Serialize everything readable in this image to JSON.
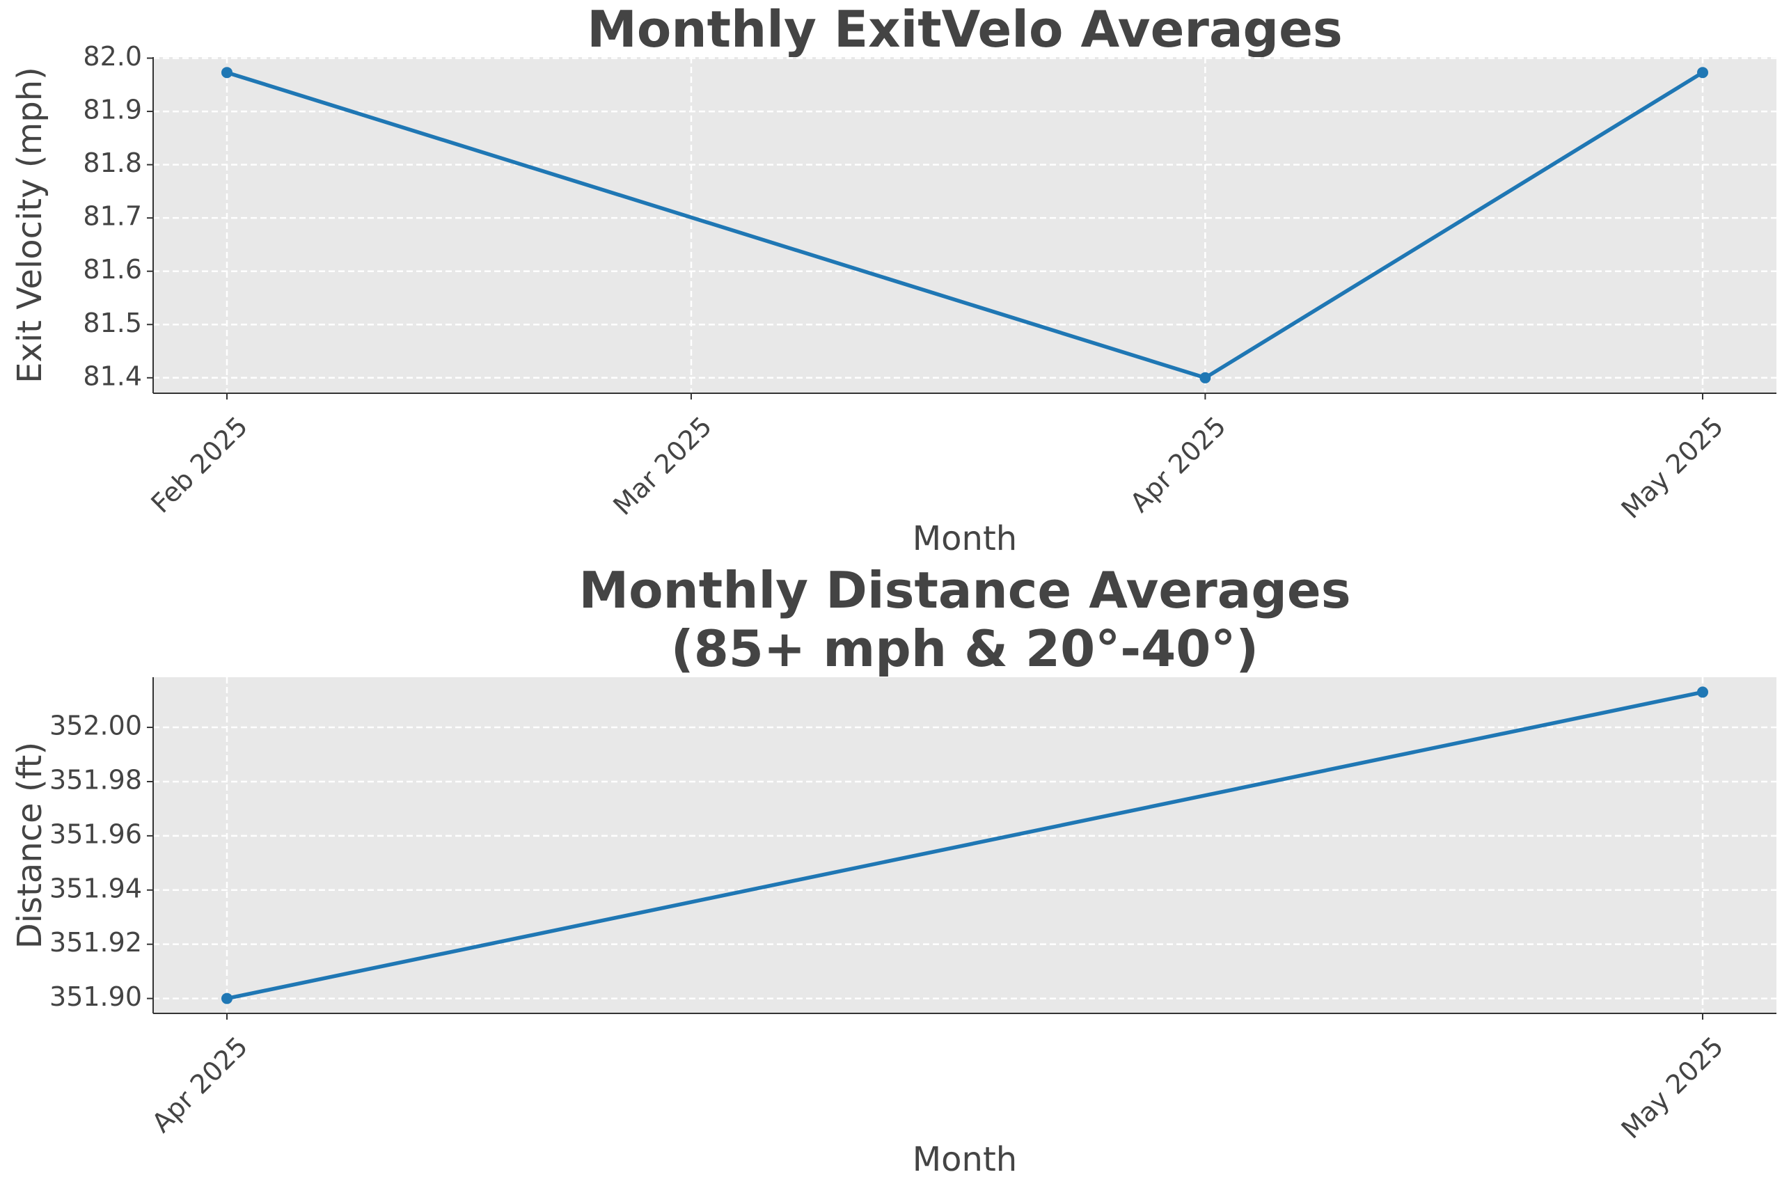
{
  "chart_data": [
    {
      "type": "line",
      "title": "Monthly ExitVelo Averages",
      "xlabel": "Month",
      "ylabel": "Exit Velocity (mph)",
      "x": [
        "2025-02",
        "2025-04",
        "2025-05"
      ],
      "series": [
        {
          "color": "#1f77b4",
          "values": [
            81.973,
            81.4,
            81.973
          ]
        }
      ],
      "xlim": [
        "2025-01-27T13:12",
        "2025-05-05T10:48"
      ],
      "xticks": [
        {
          "value": "2025-02",
          "label": "Feb 2025"
        },
        {
          "value": "2025-03",
          "label": "Mar 2025"
        },
        {
          "value": "2025-04",
          "label": "Apr 2025"
        },
        {
          "value": "2025-05",
          "label": "May 2025"
        }
      ],
      "ylim": [
        81.371,
        82.002
      ],
      "yticks": [
        81.4,
        81.5,
        81.6,
        81.7,
        81.8,
        81.9,
        {
          "value": 82,
          "label": "82.0"
        }
      ],
      "grid": true
    },
    {
      "type": "line",
      "title": "Monthly Distance Averages\n(85+ mph & 20°-40°)",
      "xlabel": "Month",
      "ylabel": "Distance (ft)",
      "x": [
        "2025-04",
        "2025-05"
      ],
      "series": [
        {
          "color": "#1f77b4",
          "values": [
            351.9,
            352.013
          ]
        }
      ],
      "xlim": [
        "2025-03-30T12:00",
        "2025-05-02T12:00"
      ],
      "xticks": [
        {
          "value": "2025-04",
          "label": "Apr 2025"
        },
        {
          "value": "2025-05",
          "label": "May 2025"
        }
      ],
      "ylim": [
        351.8945,
        352.0185
      ],
      "yticks": [
        {
          "value": 351.9,
          "label": "351.90"
        },
        {
          "value": 351.92,
          "label": "351.92"
        },
        {
          "value": 351.94,
          "label": "351.94"
        },
        {
          "value": 351.96,
          "label": "351.96"
        },
        {
          "value": 351.98,
          "label": "351.98"
        },
        {
          "value": 352,
          "label": "352.00"
        }
      ],
      "grid": true
    }
  ]
}
